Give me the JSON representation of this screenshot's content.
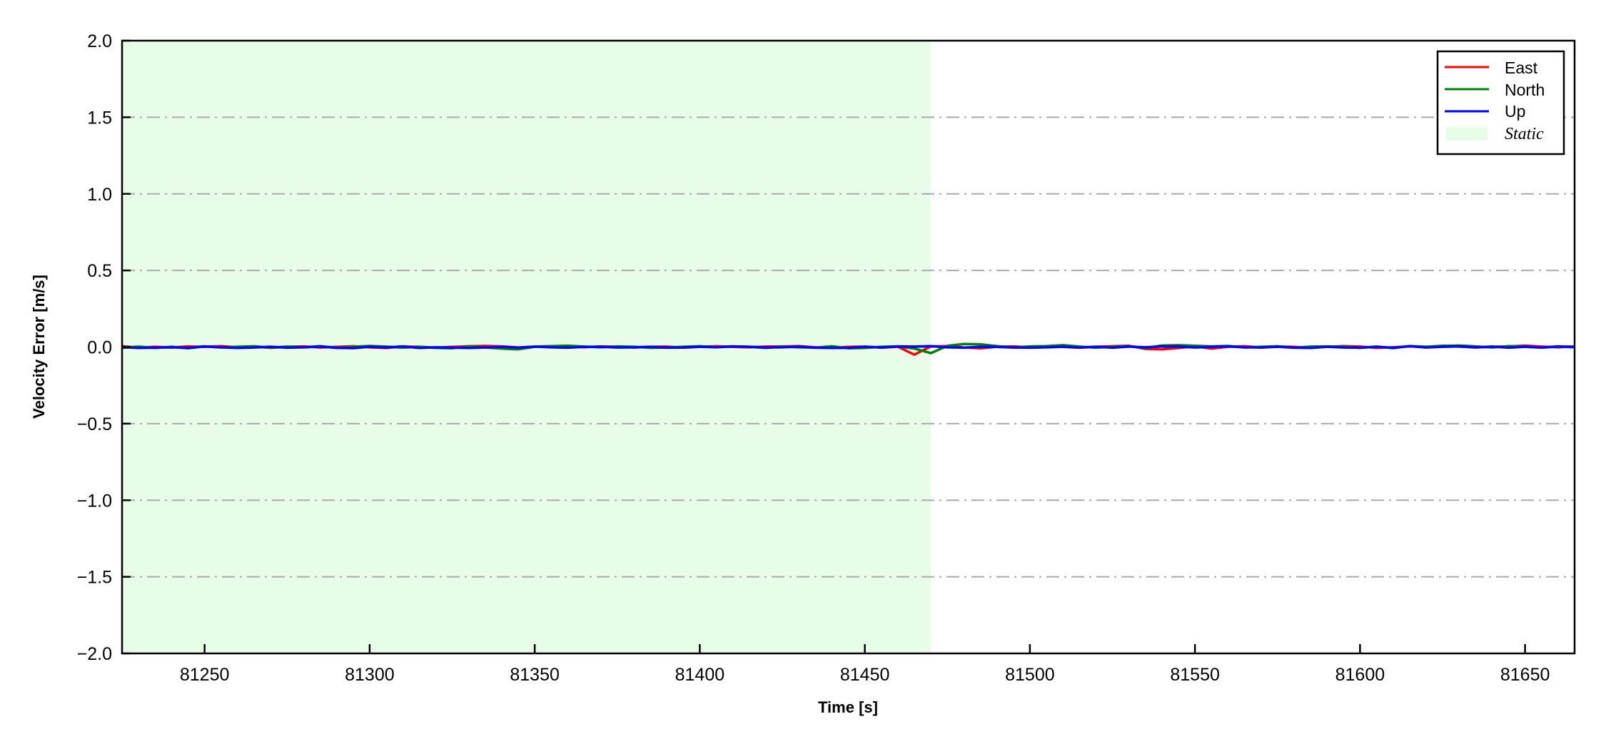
{
  "chart_data": {
    "type": "line",
    "title": "",
    "xlabel": "Time [s]",
    "ylabel": "Velocity Error [m/s]",
    "xlim": [
      81225,
      81665
    ],
    "ylim": [
      -2.0,
      2.0
    ],
    "xticks": [
      "81250",
      "81300",
      "81350",
      "81400",
      "81450",
      "81500",
      "81550",
      "81600",
      "81650"
    ],
    "xtick_values": [
      81250,
      81300,
      81350,
      81400,
      81450,
      81500,
      81550,
      81600,
      81650
    ],
    "yticks": [
      "2.0",
      "1.5",
      "1.0",
      "0.5",
      "0.0",
      "−0.5",
      "−1.0",
      "−1.5",
      "−2.0"
    ],
    "ytick_values": [
      2.0,
      1.5,
      1.0,
      0.5,
      0.0,
      -0.5,
      -1.0,
      -1.5,
      -2.0
    ],
    "grid": {
      "axis": "y",
      "style": "dash-dot",
      "color": "#aaaaaa"
    },
    "legend_position": "top-right",
    "shaded_region": {
      "name": "Static",
      "x_start": 81225,
      "x_end": 81470,
      "color": "#e8fde8"
    },
    "x": [
      81225,
      81230,
      81235,
      81240,
      81245,
      81250,
      81255,
      81260,
      81265,
      81270,
      81275,
      81280,
      81285,
      81290,
      81295,
      81300,
      81305,
      81310,
      81315,
      81320,
      81325,
      81330,
      81335,
      81340,
      81345,
      81350,
      81355,
      81360,
      81365,
      81370,
      81375,
      81380,
      81385,
      81390,
      81395,
      81400,
      81405,
      81410,
      81415,
      81420,
      81425,
      81430,
      81435,
      81440,
      81445,
      81450,
      81455,
      81460,
      81465,
      81470,
      81475,
      81480,
      81485,
      81490,
      81495,
      81500,
      81505,
      81510,
      81515,
      81520,
      81525,
      81530,
      81535,
      81540,
      81545,
      81550,
      81555,
      81560,
      81565,
      81570,
      81575,
      81580,
      81585,
      81590,
      81595,
      81600,
      81605,
      81610,
      81615,
      81620,
      81625,
      81630,
      81635,
      81640,
      81645,
      81650,
      81655,
      81660,
      81665
    ],
    "series": [
      {
        "name": "East",
        "color": "#ff0000",
        "values": [
          0.005,
          -0.004,
          0.002,
          -0.003,
          0.004,
          0.001,
          0.006,
          -0.002,
          0.003,
          -0.005,
          0.002,
          0.004,
          -0.003,
          0.001,
          0.005,
          -0.002,
          -0.006,
          0.003,
          0.002,
          -0.004,
          0.001,
          0.005,
          0.007,
          0.004,
          -0.003,
          0.002,
          0.006,
          0.003,
          -0.001,
          0.004,
          0.002,
          -0.003,
          0.001,
          0.003,
          -0.004,
          0.002,
          0.005,
          0.001,
          -0.002,
          0.003,
          0.004,
          0.006,
          -0.002,
          -0.005,
          0.001,
          0.003,
          -0.004,
          0.002,
          -0.05,
          0.004,
          0.006,
          -0.003,
          -0.008,
          0.002,
          0.004,
          -0.002,
          0.003,
          0.001,
          -0.004,
          0.002,
          0.005,
          0.008,
          -0.012,
          -0.015,
          -0.006,
          0.004,
          -0.01,
          0.002,
          0.005,
          -0.003,
          0.003,
          0.001,
          -0.004,
          0.002,
          0.006,
          0.003,
          -0.005,
          -0.002,
          0.004,
          0.001,
          0.006,
          0.003,
          -0.003,
          0.002,
          0.004,
          0.009,
          0.003,
          -0.002,
          0.004
        ]
      },
      {
        "name": "North",
        "color": "#008000",
        "values": [
          -0.005,
          0.003,
          -0.006,
          0.002,
          -0.008,
          0.004,
          -0.003,
          0.002,
          0.005,
          -0.004,
          0.003,
          -0.002,
          0.006,
          -0.005,
          0.002,
          0.007,
          0.003,
          -0.004,
          0.002,
          -0.006,
          -0.008,
          0.004,
          -0.003,
          -0.01,
          -0.015,
          0.002,
          0.006,
          0.009,
          0.003,
          -0.002,
          0.004,
          0.002,
          -0.005,
          -0.003,
          0.002,
          0.005,
          -0.002,
          0.004,
          0.001,
          -0.006,
          0.003,
          -0.002,
          -0.004,
          0.005,
          -0.008,
          -0.006,
          0.002,
          0.004,
          -0.01,
          -0.04,
          0.008,
          0.02,
          0.018,
          0.006,
          -0.003,
          0.004,
          0.006,
          0.012,
          0.003,
          -0.004,
          0.002,
          0.005,
          -0.006,
          0.01,
          0.012,
          0.008,
          0.004,
          0.007,
          -0.003,
          0.002,
          0.005,
          -0.004,
          0.003,
          0.004,
          0.002,
          -0.005,
          0.003,
          -0.007,
          0.006,
          0.002,
          0.008,
          0.01,
          0.004,
          -0.003,
          0.006,
          0.002,
          -0.004,
          0.003,
          -0.002
        ]
      },
      {
        "name": "Up",
        "color": "#0000ff",
        "values": [
          0.0,
          -0.006,
          -0.004,
          -0.002,
          -0.005,
          0.004,
          -0.002,
          -0.006,
          -0.003,
          0.002,
          -0.004,
          -0.002,
          0.003,
          -0.005,
          -0.007,
          0.002,
          -0.003,
          0.004,
          -0.006,
          -0.002,
          -0.004,
          -0.006,
          -0.003,
          0.002,
          -0.004,
          0.003,
          -0.002,
          -0.004,
          0.001,
          0.002,
          -0.003,
          -0.002,
          0.002,
          -0.004,
          -0.003,
          0.002,
          -0.001,
          0.004,
          0.002,
          -0.003,
          -0.002,
          0.003,
          -0.004,
          -0.006,
          -0.005,
          0.002,
          -0.003,
          0.004,
          0.003,
          0.006,
          -0.002,
          -0.004,
          0.002,
          0.001,
          -0.003,
          -0.004,
          -0.002,
          0.002,
          -0.003,
          0.002,
          -0.004,
          0.003,
          -0.002,
          0.004,
          0.003,
          -0.003,
          0.002,
          0.004,
          -0.002,
          -0.003,
          0.002,
          -0.004,
          -0.006,
          0.002,
          -0.003,
          -0.004,
          0.002,
          -0.005,
          0.006,
          -0.003,
          0.002,
          0.004,
          -0.002,
          0.003,
          -0.004,
          0.002,
          -0.003,
          0.004,
          0.001
        ]
      }
    ],
    "legend": [
      {
        "label": "East",
        "kind": "line",
        "color": "#ff0000"
      },
      {
        "label": "North",
        "kind": "line",
        "color": "#008000"
      },
      {
        "label": "Up",
        "kind": "line",
        "color": "#0000ff"
      },
      {
        "label": "Static",
        "kind": "patch",
        "color": "#e8fde8"
      }
    ]
  }
}
